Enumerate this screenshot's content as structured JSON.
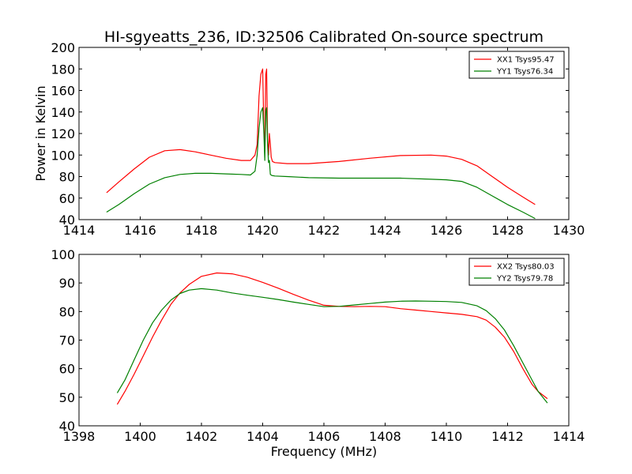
{
  "figure": {
    "title": "HI-sgyeatts_236, ID:32506 Calibrated On-source spectrum",
    "ylabel": "Power in Kelvin",
    "xlabel": "Frequency (MHz)"
  },
  "chart_data": [
    {
      "type": "line",
      "title": "HI-sgyeatts_236, ID:32506 Calibrated On-source spectrum",
      "xlabel": "",
      "ylabel": "Power in Kelvin",
      "xlim": [
        1414,
        1430
      ],
      "ylim": [
        40,
        200
      ],
      "xticks": [
        "1414",
        "1416",
        "1418",
        "1420",
        "1422",
        "1424",
        "1426",
        "1428",
        "1430"
      ],
      "yticks": [
        "40",
        "60",
        "80",
        "100",
        "120",
        "140",
        "160",
        "180",
        "200"
      ],
      "legend_position": "top-right",
      "grid": false,
      "series": [
        {
          "name": "XX1 Tsys95.47",
          "color": "#ff0000",
          "x": [
            1414.9,
            1415.3,
            1415.8,
            1416.3,
            1416.8,
            1417.3,
            1417.8,
            1418.3,
            1418.8,
            1419.3,
            1419.6,
            1419.75,
            1419.82,
            1419.88,
            1419.94,
            1420.0,
            1420.04,
            1420.07,
            1420.1,
            1420.13,
            1420.16,
            1420.19,
            1420.22,
            1420.25,
            1420.28,
            1420.32,
            1420.4,
            1420.8,
            1421.5,
            1422.5,
            1423.5,
            1424.5,
            1425.5,
            1426.0,
            1426.5,
            1427.0,
            1427.5,
            1428.0,
            1428.5,
            1428.9
          ],
          "y": [
            65,
            75,
            87,
            98,
            104,
            105,
            103,
            100,
            97,
            95,
            95,
            100,
            110,
            155,
            175,
            180,
            125,
            105,
            175,
            180,
            115,
            100,
            120,
            110,
            98,
            94,
            93,
            92,
            92,
            94,
            97,
            99.5,
            100,
            99,
            96,
            90,
            80,
            70,
            61,
            54
          ]
        },
        {
          "name": "YY1 Tsys76.34",
          "color": "#008000",
          "x": [
            1414.9,
            1415.3,
            1415.8,
            1416.3,
            1416.8,
            1417.3,
            1417.8,
            1418.3,
            1418.8,
            1419.3,
            1419.6,
            1419.75,
            1419.82,
            1419.88,
            1419.94,
            1420.0,
            1420.04,
            1420.07,
            1420.1,
            1420.13,
            1420.16,
            1420.19,
            1420.22,
            1420.25,
            1420.3,
            1420.4,
            1420.8,
            1421.5,
            1422.5,
            1423.5,
            1424.5,
            1425.5,
            1426.0,
            1426.5,
            1427.0,
            1427.5,
            1428.0,
            1428.5,
            1428.9
          ],
          "y": [
            47,
            54,
            64,
            73,
            79,
            82,
            83,
            83,
            82.5,
            82,
            81.5,
            85,
            100,
            125,
            140,
            144,
            120,
            95,
            140,
            144,
            110,
            93,
            95,
            82,
            81,
            80.5,
            80,
            79,
            78.5,
            78.5,
            78.5,
            77.5,
            77,
            75.5,
            70,
            62,
            54,
            47,
            41
          ]
        }
      ]
    },
    {
      "type": "line",
      "title": "",
      "xlabel": "Frequency (MHz)",
      "ylabel": "",
      "xlim": [
        1398,
        1414
      ],
      "ylim": [
        40,
        100
      ],
      "xticks": [
        "1398",
        "1400",
        "1402",
        "1404",
        "1406",
        "1408",
        "1410",
        "1412",
        "1414"
      ],
      "yticks": [
        "40",
        "50",
        "60",
        "70",
        "80",
        "90",
        "100"
      ],
      "legend_position": "top-right",
      "grid": false,
      "series": [
        {
          "name": "XX2 Tsys80.03",
          "color": "#ff0000",
          "x": [
            1399.25,
            1399.5,
            1399.8,
            1400.1,
            1400.4,
            1400.7,
            1401.0,
            1401.3,
            1401.6,
            1402.0,
            1402.5,
            1403.0,
            1403.5,
            1404.0,
            1404.5,
            1405.0,
            1405.5,
            1406.0,
            1406.5,
            1407.0,
            1407.5,
            1408.0,
            1408.5,
            1409.0,
            1409.5,
            1410.0,
            1410.5,
            1411.0,
            1411.3,
            1411.6,
            1411.9,
            1412.2,
            1412.5,
            1412.8,
            1413.0,
            1413.3
          ],
          "y": [
            47.5,
            52,
            58,
            64.5,
            71,
            77,
            82.5,
            86.5,
            89.5,
            92.3,
            93.5,
            93.2,
            92,
            90.2,
            88.2,
            86,
            84,
            82.2,
            81.8,
            81.7,
            81.8,
            81.7,
            81,
            80.5,
            80,
            79.5,
            79,
            78.2,
            77,
            74.5,
            71,
            66,
            60,
            54.5,
            52,
            49.5
          ]
        },
        {
          "name": "YY2 Tsys79.78",
          "color": "#008000",
          "x": [
            1399.25,
            1399.5,
            1399.8,
            1400.1,
            1400.4,
            1400.7,
            1401.0,
            1401.3,
            1401.6,
            1402.0,
            1402.5,
            1403.0,
            1403.5,
            1404.0,
            1404.5,
            1405.0,
            1405.5,
            1406.0,
            1406.5,
            1407.0,
            1407.5,
            1408.0,
            1408.5,
            1409.0,
            1409.5,
            1410.0,
            1410.5,
            1411.0,
            1411.3,
            1411.6,
            1411.9,
            1412.2,
            1412.5,
            1412.8,
            1413.0,
            1413.3
          ],
          "y": [
            51.5,
            56,
            63,
            70,
            76,
            80.5,
            84,
            86.3,
            87.5,
            88,
            87.5,
            86.5,
            85.7,
            85,
            84.2,
            83.3,
            82.5,
            81.7,
            81.8,
            82.3,
            82.8,
            83.3,
            83.6,
            83.7,
            83.6,
            83.5,
            83.2,
            82,
            80.3,
            77.5,
            73.5,
            68,
            62,
            56,
            52,
            48
          ]
        }
      ]
    }
  ]
}
